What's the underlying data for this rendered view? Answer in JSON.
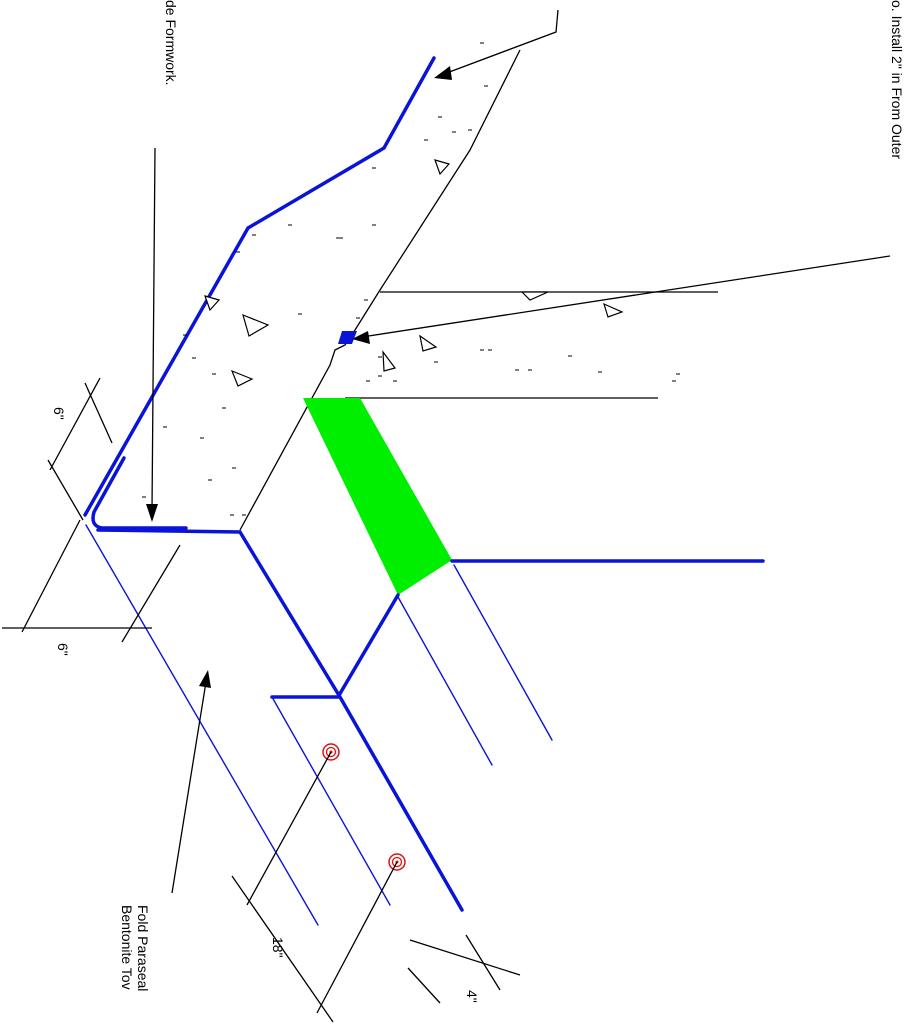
{
  "annotations": {
    "formwork_note": "de Formwork.",
    "install_note": "o.  Install 2\" in From Outer",
    "fold_note_line1": "Fold Paraseal",
    "fold_note_line2": "Bentonite Tov"
  },
  "dimensions": {
    "dim_6_upper": "6\"",
    "dim_6_lower": "6\"",
    "dim_18": "18\"",
    "dim_4": "4\""
  },
  "colors": {
    "waterproofing_line": "#0a14d8",
    "waterstop_fill": "#00ee00",
    "fastener": "#e01010",
    "linework": "#000000"
  }
}
